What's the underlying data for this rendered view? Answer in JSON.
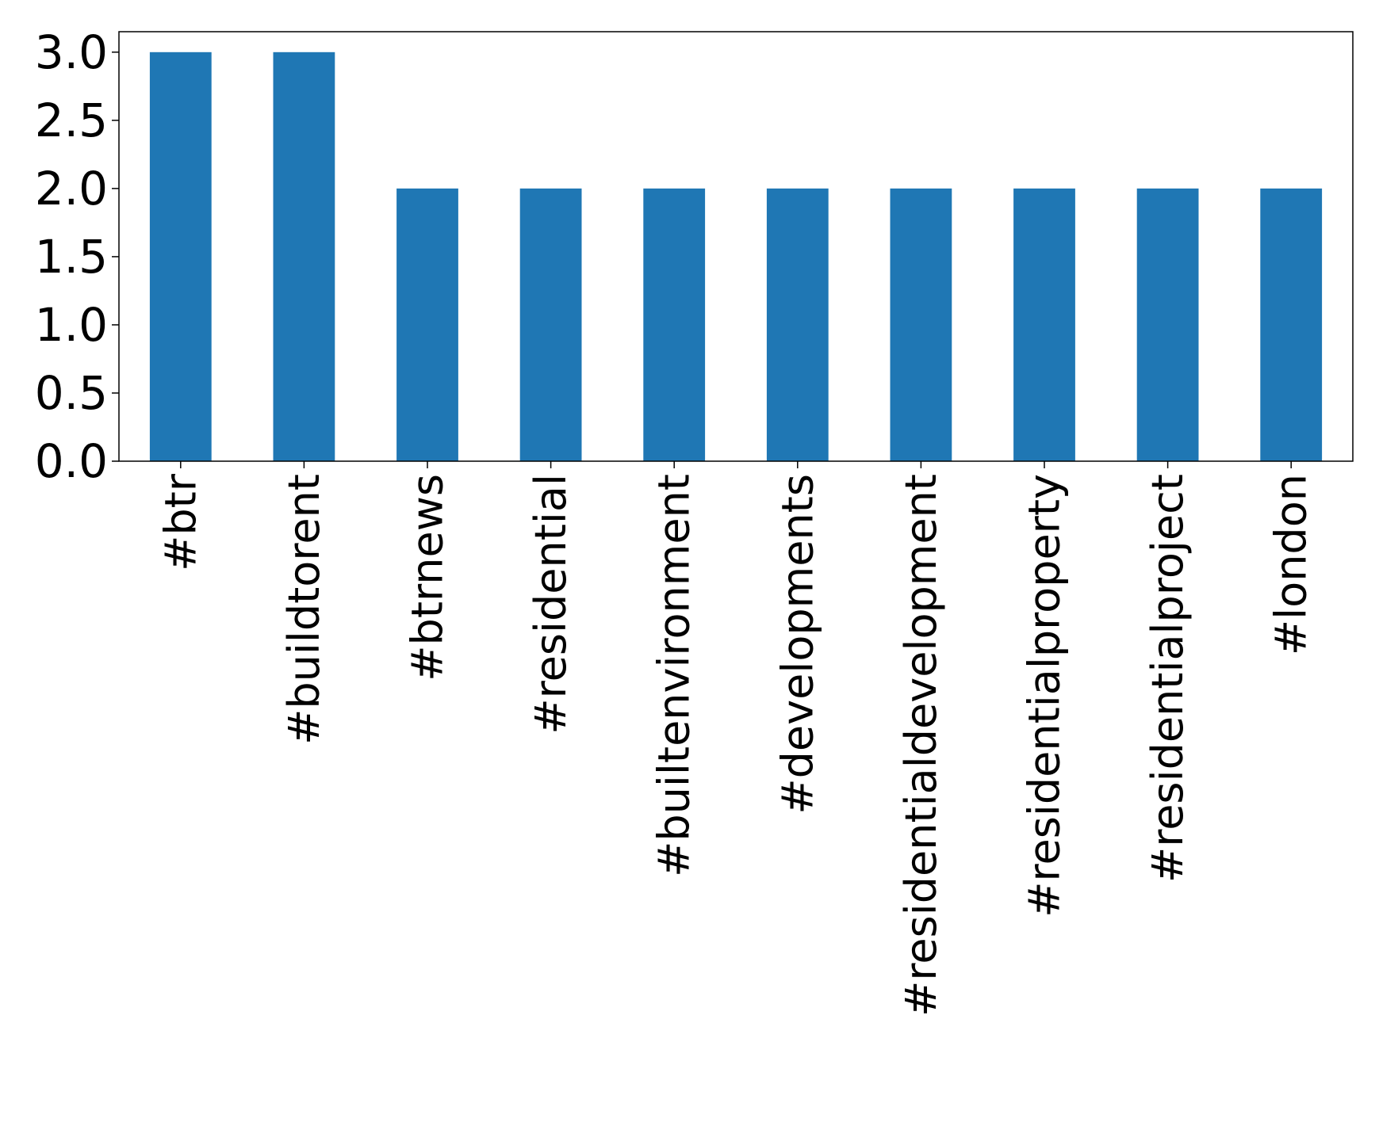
{
  "chart_data": {
    "type": "bar",
    "title": "",
    "xlabel": "",
    "ylabel": "",
    "categories": [
      "#btr",
      "#buildtorent",
      "#btrnews",
      "#residential",
      "#builtenvironment",
      "#developments",
      "#residentialdevelopment",
      "#residentialproperty",
      "#residentialproject",
      "#london"
    ],
    "values": [
      3,
      3,
      2,
      2,
      2,
      2,
      2,
      2,
      2,
      2
    ],
    "ylim": [
      0,
      3.15
    ],
    "yticks": [
      0.0,
      0.5,
      1.0,
      1.5,
      2.0,
      2.5,
      3.0
    ],
    "ytick_labels": [
      "0.0",
      "0.5",
      "1.0",
      "1.5",
      "2.0",
      "2.5",
      "3.0"
    ],
    "grid": false,
    "legend": "none",
    "bar_color": "#1f77b4"
  }
}
